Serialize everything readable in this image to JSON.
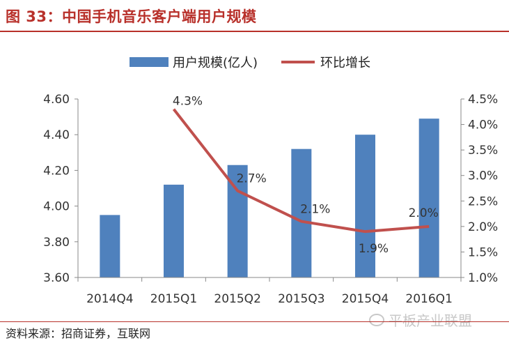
{
  "figure_title": "图 33：中国手机音乐客户端用户规模",
  "source": "资料来源：招商证券，互联网",
  "watermark": "平板产业联盟",
  "colors": {
    "bar": "#4f81bd",
    "line": "#c0504d",
    "accent": "#b8302a"
  },
  "chart_data": {
    "type": "bar",
    "categories": [
      "2014Q4",
      "2015Q1",
      "2015Q2",
      "2015Q3",
      "2015Q4",
      "2016Q1"
    ],
    "series": [
      {
        "name": "用户规模(亿人)",
        "type": "bar",
        "axis": "left",
        "values": [
          3.95,
          4.12,
          4.23,
          4.32,
          4.4,
          4.49
        ]
      },
      {
        "name": "环比增长",
        "type": "line",
        "axis": "right",
        "values": [
          null,
          4.3,
          2.7,
          2.1,
          1.9,
          2.0
        ],
        "labels": [
          null,
          "4.3%",
          "2.7%",
          "2.1%",
          "1.9%",
          "2.0%"
        ]
      }
    ],
    "y_left": {
      "min": 3.6,
      "max": 4.6,
      "ticks": [
        "3.60",
        "3.80",
        "4.00",
        "4.20",
        "4.40",
        "4.60"
      ]
    },
    "y_right": {
      "min": 1.0,
      "max": 4.5,
      "ticks": [
        "1.0%",
        "1.5%",
        "2.0%",
        "2.5%",
        "3.0%",
        "3.5%",
        "4.0%",
        "4.5%"
      ]
    },
    "legend": [
      "用户规模(亿人)",
      "环比增长"
    ],
    "grid": false
  }
}
